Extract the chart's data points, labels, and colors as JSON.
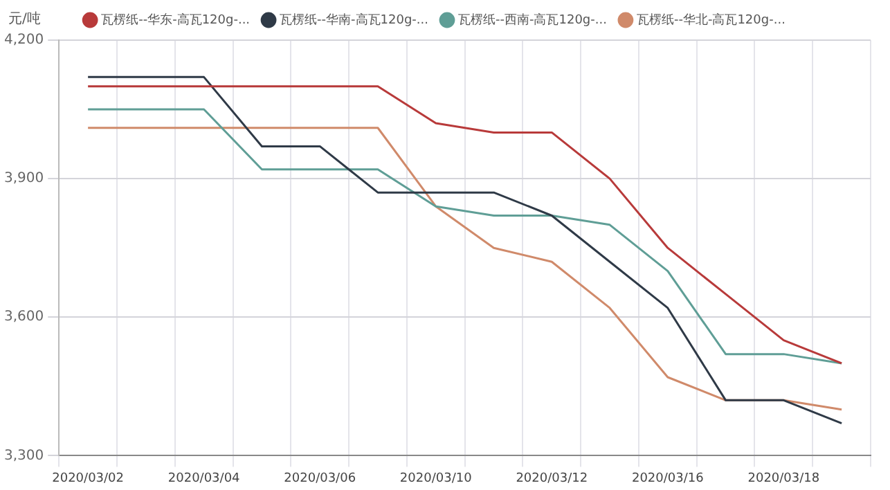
{
  "chart_data": {
    "type": "line",
    "ylabel": "元/吨",
    "categories": [
      "2020/03/02",
      null,
      "2020/03/04",
      null,
      "2020/03/06",
      null,
      "2020/03/10",
      null,
      "2020/03/12",
      null,
      "2020/03/16",
      null,
      "2020/03/18",
      null
    ],
    "series": [
      {
        "name": "瓦楞纸--华东-高瓦120g-...",
        "color": "#b83a3a",
        "values": [
          4100,
          4100,
          4100,
          4100,
          4100,
          4100,
          4020,
          4000,
          4000,
          3900,
          3750,
          3650,
          3550,
          3500
        ]
      },
      {
        "name": "瓦楞纸--华南-高瓦120g-...",
        "color": "#2f3a47",
        "values": [
          4120,
          4120,
          4120,
          3970,
          3970,
          3870,
          3870,
          3870,
          3820,
          3720,
          3620,
          3420,
          3420,
          3370
        ]
      },
      {
        "name": "瓦楞纸--西南-高瓦120g-...",
        "color": "#5f9e96",
        "values": [
          4050,
          4050,
          4050,
          3920,
          3920,
          3920,
          3840,
          3820,
          3820,
          3800,
          3700,
          3520,
          3520,
          3500
        ]
      },
      {
        "name": "瓦楞纸--华北-高瓦120g-...",
        "color": "#d08a6a",
        "values": [
          4010,
          4010,
          4010,
          4010,
          4010,
          4010,
          3840,
          3750,
          3720,
          3620,
          3470,
          3420,
          3420,
          3400
        ]
      }
    ],
    "ylim": [
      3300,
      4200
    ],
    "yticks": [
      {
        "value": 3300,
        "label": "3,300"
      },
      {
        "value": 3600,
        "label": "3,600"
      },
      {
        "value": 3900,
        "label": "3,900"
      },
      {
        "value": 4200,
        "label": "4,200"
      }
    ],
    "grid": true,
    "legend": "top",
    "marker": "none",
    "line_style": "solid"
  }
}
